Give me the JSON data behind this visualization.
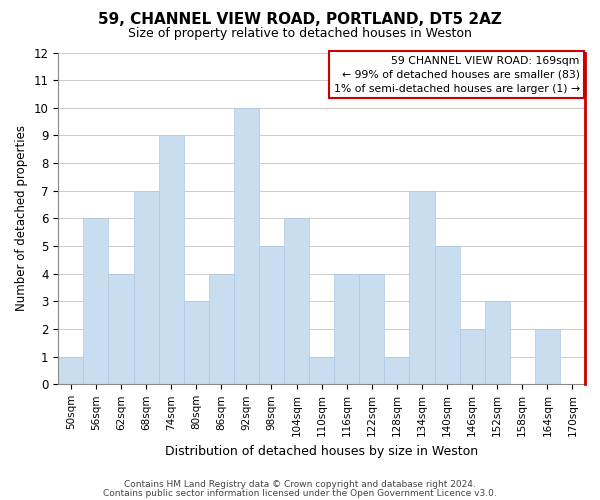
{
  "title": "59, CHANNEL VIEW ROAD, PORTLAND, DT5 2AZ",
  "subtitle": "Size of property relative to detached houses in Weston",
  "xlabel": "Distribution of detached houses by size in Weston",
  "ylabel": "Number of detached properties",
  "bar_labels": [
    "50sqm",
    "56sqm",
    "62sqm",
    "68sqm",
    "74sqm",
    "80sqm",
    "86sqm",
    "92sqm",
    "98sqm",
    "104sqm",
    "110sqm",
    "116sqm",
    "122sqm",
    "128sqm",
    "134sqm",
    "140sqm",
    "146sqm",
    "152sqm",
    "158sqm",
    "164sqm",
    "170sqm"
  ],
  "bar_heights": [
    1,
    6,
    4,
    7,
    9,
    3,
    4,
    10,
    5,
    6,
    1,
    4,
    4,
    1,
    7,
    5,
    2,
    3,
    0,
    2,
    0
  ],
  "bar_color": "#c8ddf0",
  "bar_edge_color": "#b0c8e0",
  "grid_color": "#cccccc",
  "ylim": [
    0,
    12
  ],
  "yticks": [
    0,
    1,
    2,
    3,
    4,
    5,
    6,
    7,
    8,
    9,
    10,
    11,
    12
  ],
  "vline_color": "#cc0000",
  "legend_title": "59 CHANNEL VIEW ROAD: 169sqm",
  "legend_line1": "← 99% of detached houses are smaller (83)",
  "legend_line2": "1% of semi-detached houses are larger (1) →",
  "legend_box_color": "#ffffff",
  "legend_box_edge": "#cc0000",
  "footer1": "Contains HM Land Registry data © Crown copyright and database right 2024.",
  "footer2": "Contains public sector information licensed under the Open Government Licence v3.0."
}
